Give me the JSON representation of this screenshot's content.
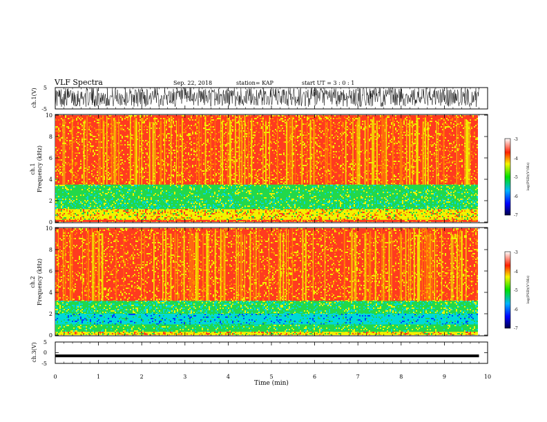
{
  "header": {
    "title": "VLF Spectra",
    "date": "Sep. 22, 2018",
    "station": "station= KAP",
    "start": "start  UT =  3 : 0  : 1"
  },
  "chart_data": [
    {
      "type": "line",
      "panel": "ch1-waveform",
      "ylabel": "ch.1(V)",
      "ylim": [
        -5,
        5
      ],
      "y_ticks": [
        "5",
        "-5"
      ],
      "trace": "dense noisy signal filling roughly -4 to 5 V across the full record",
      "color": "#000000"
    },
    {
      "type": "heatmap",
      "panel": "ch1-spectrogram",
      "ylabel_line1": "ch.1",
      "ylabel_line2": "Frequency (kHz)",
      "ylim": [
        0,
        10
      ],
      "y_ticks": [
        "0",
        "2",
        "4",
        "6",
        "8",
        "10"
      ],
      "bands": [
        {
          "from": 3.5,
          "to": 10,
          "dominant": "red"
        },
        {
          "from": 2.2,
          "to": 3.5,
          "dominant": "green"
        },
        {
          "from": 1.2,
          "to": 2.2,
          "dominant": "green-cyan"
        },
        {
          "from": 0.2,
          "to": 1.2,
          "dominant": "yellow"
        },
        {
          "from": 0,
          "to": 0.2,
          "dominant": "red"
        }
      ],
      "colorbar": {
        "label": "log(PSD)(V²/Hz)",
        "range": [
          -7,
          -3
        ],
        "ticks": [
          "-3",
          "-4",
          "-5",
          "-6",
          "-7"
        ]
      }
    },
    {
      "type": "heatmap",
      "panel": "ch2-spectrogram",
      "ylabel_line1": "ch.2",
      "ylabel_line2": "Frequency (kHz)",
      "ylim": [
        0,
        10
      ],
      "y_ticks": [
        "0",
        "2",
        "4",
        "6",
        "8",
        "10"
      ],
      "bands": [
        {
          "from": 3.2,
          "to": 10,
          "dominant": "red"
        },
        {
          "from": 2.0,
          "to": 3.2,
          "dominant": "green-cyan"
        },
        {
          "from": 1.0,
          "to": 2.0,
          "dominant": "cyan"
        },
        {
          "from": 0.3,
          "to": 1.0,
          "dominant": "green"
        },
        {
          "from": 0,
          "to": 0.3,
          "dominant": "yellow"
        }
      ],
      "colorbar": {
        "label": "log(PSD)(V²/Hz)",
        "range": [
          -7,
          -3
        ],
        "ticks": [
          "-3",
          "-4",
          "-5",
          "-6",
          "-7"
        ]
      }
    },
    {
      "type": "line",
      "panel": "ch3-waveform",
      "ylabel": "ch.3(V)",
      "ylim": [
        -5,
        5
      ],
      "y_ticks": [
        "5",
        "0",
        "-5"
      ],
      "constant_value": -1.5,
      "color": "#000000"
    }
  ],
  "x_axis": {
    "label": "Time (min)",
    "range": [
      0,
      10
    ],
    "ticks": [
      "0",
      "1",
      "2",
      "3",
      "4",
      "5",
      "6",
      "7",
      "8",
      "9",
      "10"
    ],
    "data_end": 9.8
  },
  "colors": {
    "red": "#ff3b1f",
    "orange": "#ff8a00",
    "yellow": "#f2f200",
    "green": "#22d84a",
    "cyan": "#00d8d8",
    "blue": "#0040ff",
    "navy": "#00006a"
  }
}
